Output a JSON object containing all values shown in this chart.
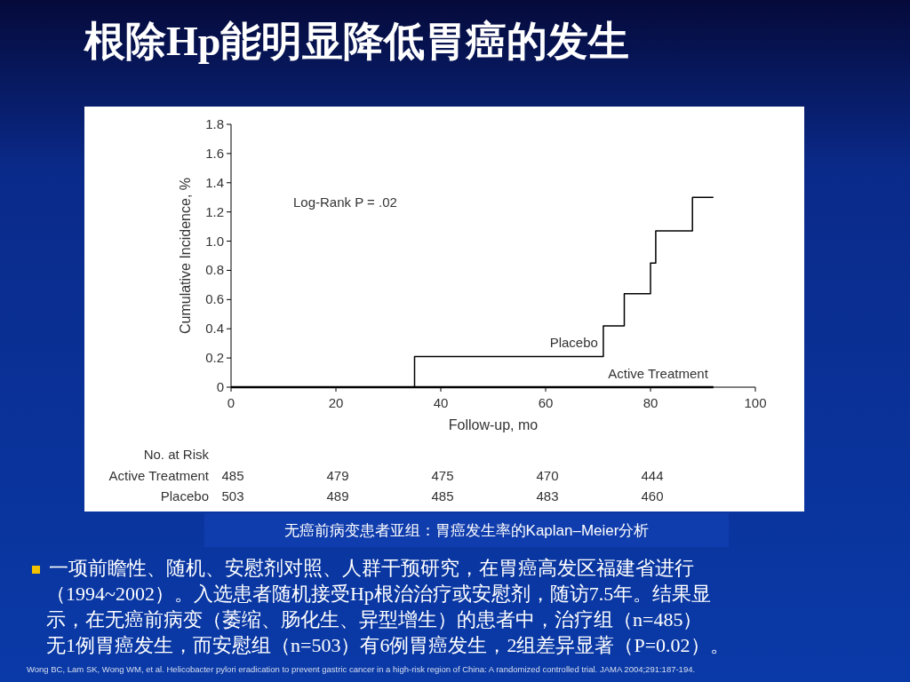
{
  "chart_data": {
    "type": "step",
    "title": "根除Hp能明显降低胃癌的发生",
    "xlabel": "Follow-up, mo",
    "ylabel": "Cumulative Incidence, %",
    "xlim": [
      0,
      100
    ],
    "xticks": [
      0,
      20,
      40,
      60,
      80,
      100
    ],
    "ylim": [
      0,
      1.8
    ],
    "yticks": [
      {
        "value": 0,
        "label": "0"
      },
      0.2,
      0.4,
      0.6,
      0.8,
      {
        "value": 1,
        "label": "1.0"
      },
      1.2,
      1.4,
      1.6,
      1.8
    ],
    "series": [
      {
        "name": "Placebo",
        "color": "#000000",
        "x": [
          0,
          35,
          71,
          75,
          80,
          81,
          88,
          92
        ],
        "values": [
          0,
          0.21,
          0.42,
          0.64,
          0.85,
          1.07,
          1.3,
          1.3
        ]
      },
      {
        "name": "Active Treatment",
        "color": "#000000",
        "x": [
          0,
          92
        ],
        "values": [
          0,
          0
        ]
      }
    ],
    "annotations": [
      "Log-Rank P = .02",
      "No. at Risk",
      "Active Treatment",
      "485",
      "479",
      "475",
      "470",
      "444",
      "Placebo",
      "503",
      "489",
      "485",
      "483",
      "460",
      "无癌前病变患者亚组：胃癌发生率的Kaplan–Meier分析",
      "一项前瞻性、随机、安慰剂对照、人群干预研究，在胃癌高发区福建省进行",
      "（1994~2002）。入选患者随机接受Hp根治治疗或安慰剂，随访7.5年。结果显",
      "示，在无癌前病变（萎缩、肠化生、异型增生）的患者中，治疗组（n=485）",
      "无1例胃癌发生，而安慰组（n=503）有6例胃癌发生，2组差异显著（P=0.02）。",
      "Wong BC, Lam SK, Wong WM, et al. Helicobacter pylori eradication to prevent gastric cancer in a high-risk region of China: A randomized controlled trial. JAMA 2004;291:187-194."
    ]
  }
}
